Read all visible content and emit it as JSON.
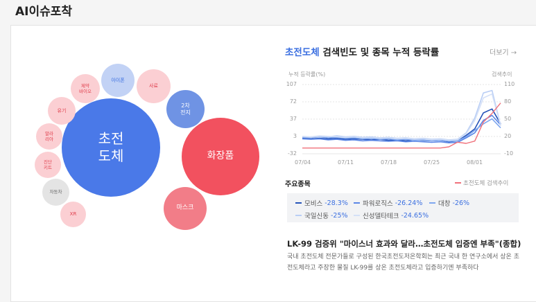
{
  "page": {
    "title": "AI이슈포착"
  },
  "bubbles": [
    {
      "id": "superconductor",
      "label": "초전\n도체",
      "color": "#4a79e8",
      "text_color": "#ffffff"
    },
    {
      "id": "cosmetics",
      "label": "화장품",
      "color": "#f2515f",
      "text_color": "#ffffff"
    },
    {
      "id": "mask",
      "label": "마스크",
      "color": "#f27d88",
      "text_color": "#ffffff"
    },
    {
      "id": "secondary-battery",
      "label": "2차\n전지",
      "color": "#6f93e4",
      "text_color": "#ffffff"
    },
    {
      "id": "iphone",
      "label": "아이폰",
      "color": "#c2d2f5",
      "text_color": "#3b6fe0"
    },
    {
      "id": "feed",
      "label": "사료",
      "color": "#fbcfd3",
      "text_color": "#e0404e"
    },
    {
      "id": "pharma-bio",
      "label": "제약\n바이오",
      "color": "#fbcfd3",
      "text_color": "#e0404e"
    },
    {
      "id": "dairy",
      "label": "유기",
      "color": "#fbcfd3",
      "text_color": "#e0404e"
    },
    {
      "id": "malaria",
      "label": "말라\n리아",
      "color": "#fbcfd3",
      "text_color": "#e0404e"
    },
    {
      "id": "diagnostic-kit",
      "label": "진단\n키트",
      "color": "#fbcfd3",
      "text_color": "#e0404e"
    },
    {
      "id": "automobile",
      "label": "자동차",
      "color": "#e4e4e4",
      "text_color": "#666666"
    },
    {
      "id": "xr",
      "label": "XR",
      "color": "#fbcfd3",
      "text_color": "#e0404e"
    }
  ],
  "panel": {
    "title_highlight": "초전도체",
    "title_rest": " 검색빈도 및 종목 누적 등락률",
    "more": "더보기 →"
  },
  "chart_data": {
    "type": "line",
    "ylabel_left": "누적 등락률(%)",
    "ylabel_right": "검색추이",
    "y_ticks_left": [
      "107",
      "72",
      "37",
      "3",
      "-32"
    ],
    "y_ticks_right": [
      "110",
      "80",
      "50",
      "20",
      "-10"
    ],
    "ylim_left": [
      -32,
      107
    ],
    "ylim_right": [
      -10,
      110
    ],
    "x_ticks": [
      "07/04",
      "07/11",
      "07/18",
      "07/25",
      "08/01"
    ],
    "x": [
      "07/04",
      "07/05",
      "07/06",
      "07/07",
      "07/10",
      "07/11",
      "07/12",
      "07/13",
      "07/14",
      "07/17",
      "07/18",
      "07/19",
      "07/20",
      "07/21",
      "07/24",
      "07/25",
      "07/26",
      "07/27",
      "07/28",
      "07/31",
      "08/01",
      "08/02",
      "08/03",
      "08/04"
    ],
    "series": [
      {
        "name": "모비스",
        "axis": "left",
        "color": "#2452b8",
        "values": [
          0,
          -2,
          -1,
          -2,
          -1,
          -3,
          -2,
          -3,
          -4,
          -3,
          -5,
          -4,
          -6,
          -4,
          -5,
          -6,
          -5,
          -8,
          -6,
          5,
          18,
          50,
          58,
          28
        ]
      },
      {
        "name": "파워로직스",
        "axis": "left",
        "color": "#5a86e6",
        "values": [
          -2,
          -3,
          -2,
          -4,
          -3,
          -5,
          -4,
          -6,
          -5,
          -6,
          -7,
          -6,
          -8,
          -7,
          -8,
          -9,
          -8,
          -10,
          -9,
          0,
          10,
          35,
          45,
          26
        ]
      },
      {
        "name": "대창",
        "axis": "left",
        "color": "#7ea6ef",
        "values": [
          1,
          0,
          2,
          0,
          1,
          -1,
          0,
          -2,
          -1,
          -3,
          -2,
          -4,
          -3,
          -5,
          -4,
          -6,
          -5,
          -7,
          -6,
          2,
          15,
          28,
          38,
          20
        ]
      },
      {
        "name": "국일신동",
        "axis": "left",
        "color": "#b9cef5",
        "values": [
          2,
          1,
          3,
          2,
          4,
          2,
          3,
          1,
          2,
          0,
          1,
          -1,
          0,
          -2,
          -1,
          -3,
          -2,
          -4,
          -3,
          10,
          40,
          90,
          95,
          25
        ]
      },
      {
        "name": "신성델타테크",
        "axis": "left",
        "color": "#d4e0f7",
        "values": [
          3,
          2,
          4,
          3,
          2,
          1,
          2,
          0,
          1,
          -1,
          0,
          -2,
          -1,
          -3,
          -2,
          -4,
          -3,
          -5,
          -4,
          8,
          35,
          80,
          88,
          24
        ]
      },
      {
        "name": "초전도체 검색추이",
        "axis": "right",
        "color": "#f0707a",
        "values": [
          0,
          0,
          0,
          0,
          0,
          0,
          0,
          0,
          0,
          0,
          0,
          0,
          0,
          0,
          0,
          0,
          0,
          2,
          10,
          8,
          12,
          45,
          60,
          78
        ]
      }
    ]
  },
  "stocks": {
    "label": "주요종목",
    "search_legend": "초전도체 검색추이",
    "items": [
      {
        "name": "모비스",
        "change": "-28.3%",
        "color": "#2452b8"
      },
      {
        "name": "파워로직스",
        "change": "-26.24%",
        "color": "#5a86e6"
      },
      {
        "name": "대창",
        "change": "-26%",
        "color": "#7ea6ef"
      },
      {
        "name": "국일신동",
        "change": "-25%",
        "color": "#b9cef5"
      },
      {
        "name": "신성델타테크",
        "change": "-24.65%",
        "color": "#d4e0f7"
      }
    ]
  },
  "news": {
    "title": "LK-99 검증위 \"마이스너 효과와 달라…초전도체 입증엔 부족\"(종합)",
    "body": "국내 초전도체 전문가들로 구성된 한국초전도저온학회는 최근 국내 한 연구소에서 상온 초전도체라고 주장한 물질 LK-99를 상온 초전도체라고 입증하기엔 부족하다"
  }
}
